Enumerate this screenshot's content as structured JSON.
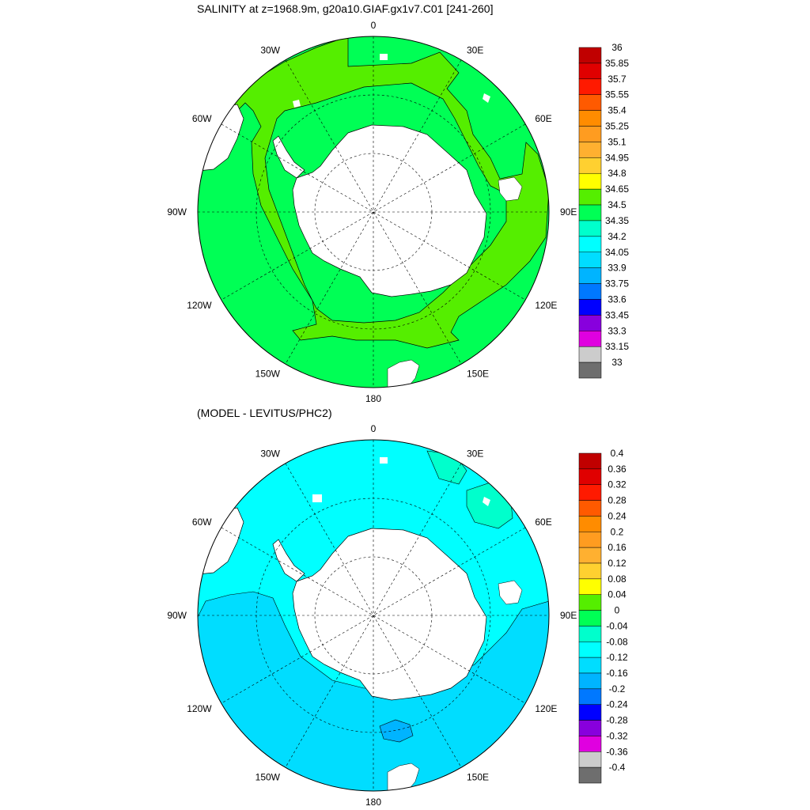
{
  "top_panel": {
    "title": "SALINITY at z=1968.9m, g20a10.GIAF.gx1v7.C01 [241-260]",
    "lon_labels": [
      "0",
      "30E",
      "60E",
      "90E",
      "120E",
      "150E",
      "180",
      "150W",
      "120W",
      "90W",
      "60W",
      "30W"
    ],
    "colorbar": {
      "labels": [
        "36",
        "35.85",
        "35.7",
        "35.55",
        "35.4",
        "35.25",
        "35.1",
        "34.95",
        "34.8",
        "34.65",
        "34.5",
        "34.35",
        "34.2",
        "34.05",
        "33.9",
        "33.75",
        "33.6",
        "33.45",
        "33.3",
        "33.15",
        "33"
      ],
      "colors": [
        "#c00000",
        "#e00000",
        "#ff1a00",
        "#ff5a00",
        "#ff8c00",
        "#ff9c20",
        "#ffb030",
        "#ffd030",
        "#ffff00",
        "#55ee00",
        "#00ff55",
        "#00ffcc",
        "#00ffff",
        "#00ddff",
        "#00b4ff",
        "#0078ff",
        "#0000ff",
        "#8800dd",
        "#e000e0",
        "#cccccc",
        "#6e6e6e"
      ]
    },
    "fill_colors": {
      "ocean_main": "#00ff55",
      "ocean_secondary": "#55ee00",
      "land": "#ffffff"
    }
  },
  "bottom_panel": {
    "title": "(MODEL - LEVITUS/PHC2)",
    "lon_labels": [
      "0",
      "30E",
      "60E",
      "90E",
      "120E",
      "150E",
      "180",
      "150W",
      "120W",
      "90W",
      "60W",
      "30W"
    ],
    "colorbar": {
      "labels": [
        "0.4",
        "0.36",
        "0.32",
        "0.28",
        "0.24",
        "0.2",
        "0.16",
        "0.12",
        "0.08",
        "0.04",
        "0",
        "-0.04",
        "-0.08",
        "-0.12",
        "-0.16",
        "-0.2",
        "-0.24",
        "-0.28",
        "-0.32",
        "-0.36",
        "-0.4"
      ],
      "colors": [
        "#c00000",
        "#e00000",
        "#ff1a00",
        "#ff5a00",
        "#ff8c00",
        "#ff9c20",
        "#ffb030",
        "#ffd030",
        "#ffff00",
        "#55ee00",
        "#00ff55",
        "#00ffcc",
        "#00ffff",
        "#00ddff",
        "#00b4ff",
        "#0078ff",
        "#0000ff",
        "#8800dd",
        "#e000e0",
        "#cccccc",
        "#6e6e6e"
      ]
    },
    "fill_colors": {
      "ocean_main": "#00ffff",
      "ocean_negative": "#00ddff",
      "ocean_near_zero": "#00ffcc",
      "land": "#ffffff"
    }
  }
}
